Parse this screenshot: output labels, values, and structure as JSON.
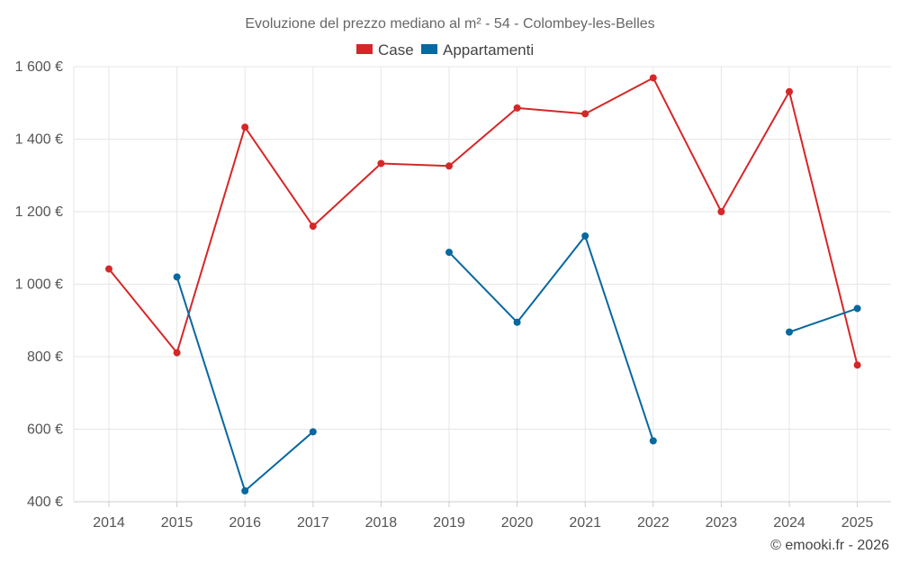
{
  "chart_data": {
    "type": "line",
    "title": "Evoluzione del prezzo mediano al m² - 54 - Colombey-les-Belles",
    "xlabel": "",
    "ylabel": "",
    "categories": [
      "2014",
      "2015",
      "2016",
      "2017",
      "2018",
      "2019",
      "2020",
      "2021",
      "2022",
      "2023",
      "2024",
      "2025"
    ],
    "ylim": [
      400,
      1600
    ],
    "yticks": [
      400,
      600,
      800,
      1000,
      1200,
      1400,
      1600
    ],
    "ytick_labels": [
      "400 €",
      "600 €",
      "800 €",
      "1 000 €",
      "1 200 €",
      "1 400 €",
      "1 600 €"
    ],
    "grid": true,
    "legend_position": "top-center",
    "series": [
      {
        "name": "Case",
        "color": "#d62728",
        "values": [
          1042,
          811,
          1433,
          1160,
          1333,
          1326,
          1486,
          1470,
          1569,
          1200,
          1531,
          777
        ]
      },
      {
        "name": "Appartamenti",
        "color": "#0868a0",
        "values": [
          null,
          1020,
          430,
          593,
          null,
          1088,
          895,
          1133,
          568,
          null,
          868,
          933
        ]
      }
    ],
    "credit": "© emooki.fr - 2026"
  }
}
